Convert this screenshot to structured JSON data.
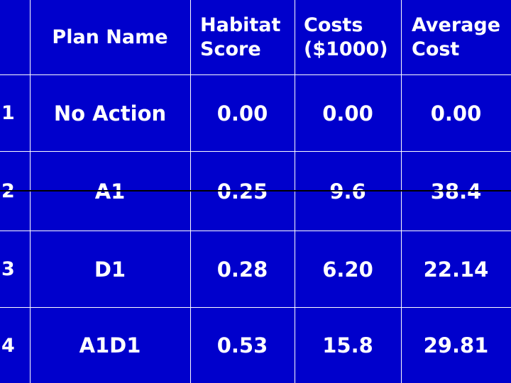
{
  "table": {
    "headers": {
      "plan_name": "Plan Name",
      "habitat_line1": "Habitat",
      "habitat_line2": "Score",
      "costs_line1": "Costs",
      "costs_line2": "($1000)",
      "avg_line1": "Average",
      "avg_line2": "Cost"
    },
    "rows": [
      {
        "index": "1",
        "plan": "No Action",
        "habitat": "0.00",
        "costs": "0.00",
        "avg": "0.00"
      },
      {
        "index": "2",
        "plan": "A1",
        "habitat": "0.25",
        "costs": "9.6",
        "avg": "38.4"
      },
      {
        "index": "3",
        "plan": "D1",
        "habitat": "0.28",
        "costs": "6.20",
        "avg": "22.14"
      },
      {
        "index": "4",
        "plan": "A1D1",
        "habitat": "0.53",
        "costs": "15.8",
        "avg": "29.81"
      }
    ]
  },
  "colors": {
    "background": "#0000cc",
    "text": "#ffffff",
    "grid": "#ffffff",
    "strike_line": "#000000"
  }
}
